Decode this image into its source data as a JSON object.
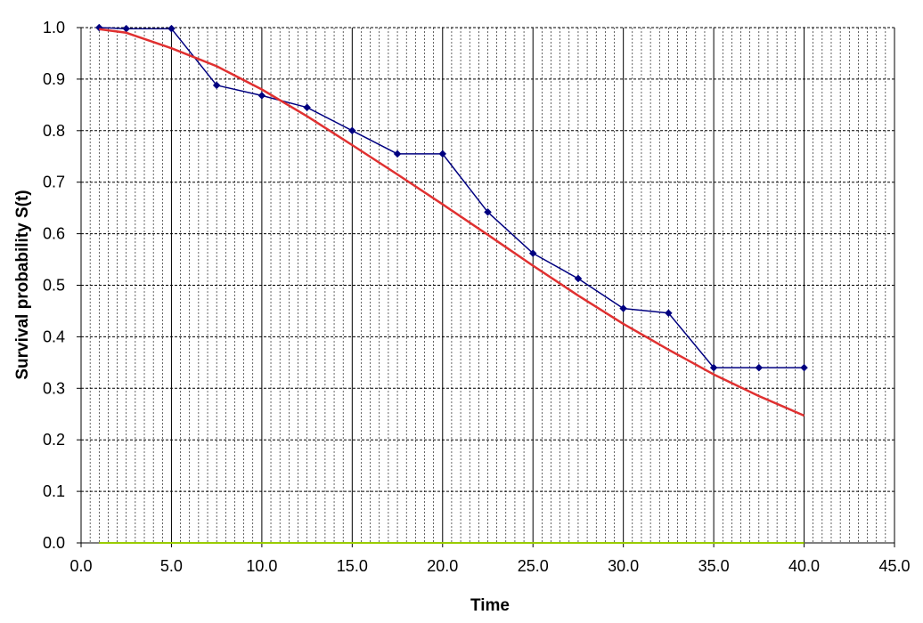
{
  "chart_data": {
    "type": "line",
    "xlabel": "Time",
    "ylabel": "Survival probability S(t)",
    "xlim": [
      0,
      45
    ],
    "ylim": [
      0,
      1
    ],
    "x_ticks": [
      "0.0",
      "5.0",
      "10.0",
      "15.0",
      "20.0",
      "25.0",
      "30.0",
      "35.0",
      "40.0",
      "45.0"
    ],
    "y_ticks": [
      "0.0",
      "0.1",
      "0.2",
      "0.3",
      "0.4",
      "0.5",
      "0.6",
      "0.7",
      "0.8",
      "0.9",
      "1.0"
    ],
    "grid": true,
    "series": [
      {
        "color": "#000080",
        "marker": "diamond",
        "x": [
          1,
          2.5,
          5,
          7.5,
          10,
          12.5,
          15,
          17.5,
          20,
          22.5,
          25,
          27.5,
          30,
          32.5,
          35,
          37.5,
          40
        ],
        "y": [
          1.0,
          0.998,
          0.998,
          0.888,
          0.868,
          0.845,
          0.8,
          0.755,
          0.755,
          0.642,
          0.562,
          0.513,
          0.455,
          0.446,
          0.34,
          0.34,
          0.34
        ]
      },
      {
        "color": "#e03030",
        "marker": "none",
        "x": [
          1,
          2.5,
          5,
          7.5,
          10,
          12.5,
          15,
          17.5,
          20,
          22.5,
          25,
          27.5,
          30,
          32.5,
          35,
          37.5,
          40
        ],
        "y": [
          0.997,
          0.99,
          0.96,
          0.925,
          0.88,
          0.828,
          0.772,
          0.715,
          0.657,
          0.598,
          0.538,
          0.48,
          0.425,
          0.375,
          0.327,
          0.285,
          0.247
        ]
      },
      {
        "color": "#99cc00",
        "marker": "none",
        "x": [
          1,
          40
        ],
        "y": [
          0,
          0
        ]
      }
    ]
  }
}
